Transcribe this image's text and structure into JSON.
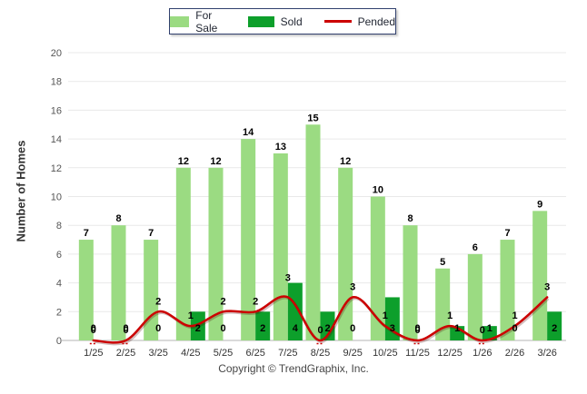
{
  "legend": {
    "items": [
      {
        "label": "For Sale",
        "type": "swatch",
        "color": "#9BDB82"
      },
      {
        "label": "Sold",
        "type": "swatch",
        "color": "#0D9F2B"
      },
      {
        "label": "Pended",
        "type": "line",
        "color": "#CC0000"
      }
    ]
  },
  "y_axis": {
    "title": "Number of Homes",
    "ticks": [
      0,
      2,
      4,
      6,
      8,
      10,
      12,
      14,
      16,
      18,
      20
    ]
  },
  "footer": {
    "copyright": "Copyright © TrendGraphix, Inc."
  },
  "colors": {
    "for_sale": "#9BDB82",
    "sold": "#0D9F2B",
    "pended": "#CC0000",
    "gridline": "#E9E9E9",
    "axis_line": "#C4C4C4",
    "tick_text": "#555555",
    "x_text": "#333333",
    "bar_label": "#000000"
  },
  "chart_data": {
    "type": "bar",
    "subtype": "grouped-bars-with-line-overlay",
    "categories": [
      "1/25",
      "2/25",
      "3/25",
      "4/25",
      "5/25",
      "6/25",
      "7/25",
      "8/25",
      "9/25",
      "10/25",
      "11/25",
      "12/25",
      "1/26",
      "2/26",
      "3/26"
    ],
    "series": [
      {
        "name": "For Sale",
        "type": "bar",
        "color": "#9BDB82",
        "values": [
          7,
          8,
          7,
          12,
          12,
          14,
          13,
          15,
          12,
          10,
          8,
          5,
          6,
          7,
          9
        ]
      },
      {
        "name": "Sold",
        "type": "bar",
        "color": "#0D9F2B",
        "values": [
          0,
          0,
          0,
          2,
          0,
          2,
          4,
          2,
          0,
          3,
          0,
          1,
          1,
          0,
          2
        ]
      },
      {
        "name": "Pended",
        "type": "line",
        "color": "#CC0000",
        "values": [
          0,
          0,
          2,
          1,
          2,
          2,
          3,
          0,
          3,
          1,
          0,
          1,
          0,
          1,
          3
        ]
      }
    ],
    "title": "",
    "xlabel": "",
    "ylabel": "Number of Homes",
    "ylim": [
      0,
      20
    ],
    "y_tick_step": 2,
    "grid": "horizontal",
    "legend_position": "top-center",
    "data_labels": true
  }
}
